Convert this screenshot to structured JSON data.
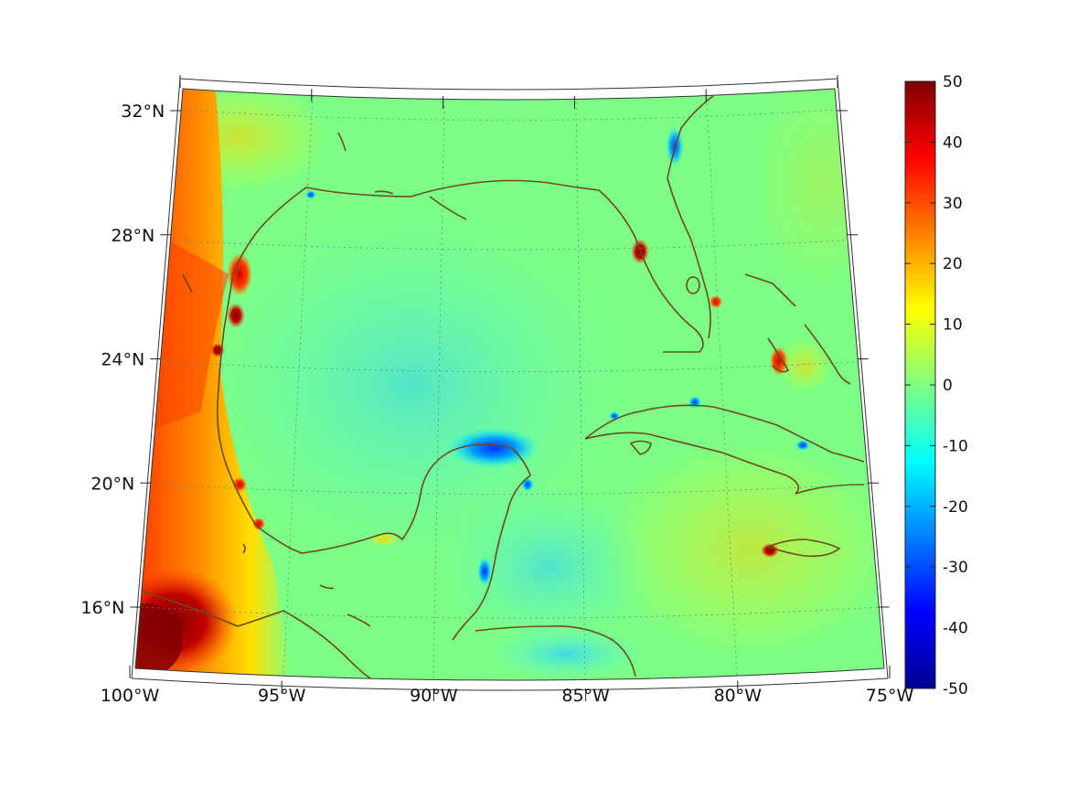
{
  "map": {
    "projection": "conic",
    "lon_range": [
      -100,
      -75
    ],
    "lat_range": [
      14.5,
      32.5
    ],
    "lon_ticks": [
      {
        "value": -100,
        "label": "100°W"
      },
      {
        "value": -95,
        "label": "95°W"
      },
      {
        "value": -90,
        "label": "90°W"
      },
      {
        "value": -85,
        "label": "85°W"
      },
      {
        "value": -80,
        "label": "80°W"
      },
      {
        "value": -75,
        "label": "75°W"
      }
    ],
    "lat_ticks": [
      {
        "value": 16,
        "label": "16°N"
      },
      {
        "value": 20,
        "label": "20°N"
      },
      {
        "value": 24,
        "label": "24°N"
      },
      {
        "value": 28,
        "label": "28°N"
      },
      {
        "value": 32,
        "label": "32°N"
      }
    ],
    "grid": true,
    "field_colors": {
      "background": "#7fff80",
      "coast": "#6b4a1e"
    }
  },
  "colorbar": {
    "min": -50,
    "max": 50,
    "colormap": "jet",
    "ticks": [
      "50",
      "40",
      "30",
      "20",
      "10",
      "0",
      "-10",
      "-20",
      "-30",
      "-40",
      "-50"
    ]
  }
}
